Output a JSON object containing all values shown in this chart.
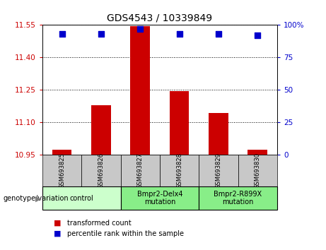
{
  "title": "GDS4543 / 10339849",
  "samples": [
    "GSM693825",
    "GSM693826",
    "GSM693827",
    "GSM693828",
    "GSM693829",
    "GSM693830"
  ],
  "bar_values": [
    10.975,
    11.18,
    11.545,
    11.245,
    11.145,
    10.975
  ],
  "percentile_values": [
    93,
    93,
    97,
    93,
    93,
    92
  ],
  "ylim_left": [
    10.95,
    11.55
  ],
  "ylim_right": [
    0,
    100
  ],
  "yticks_left": [
    10.95,
    11.1,
    11.25,
    11.4,
    11.55
  ],
  "yticks_right": [
    0,
    25,
    50,
    75,
    100
  ],
  "bar_color": "#cc0000",
  "dot_color": "#0000cc",
  "groups": [
    {
      "label": "control",
      "samples": [
        0,
        1
      ],
      "color": "#ccffcc"
    },
    {
      "label": "Bmpr2-Delx4\nmutation",
      "samples": [
        2,
        3
      ],
      "color": "#88ee88"
    },
    {
      "label": "Bmpr2-R899X\nmutation",
      "samples": [
        4,
        5
      ],
      "color": "#88ee88"
    }
  ],
  "xlabel_area_label": "genotype/variation",
  "legend_items": [
    {
      "color": "#cc0000",
      "label": "transformed count"
    },
    {
      "color": "#0000cc",
      "label": "percentile rank within the sample"
    }
  ],
  "tick_label_color_left": "#cc0000",
  "tick_label_color_right": "#0000cc",
  "grid_style": "dotted",
  "grid_color": "black",
  "bar_bottom": 10.95,
  "dot_size": 30,
  "sample_box_color": "#c8c8c8",
  "bar_width": 0.5
}
